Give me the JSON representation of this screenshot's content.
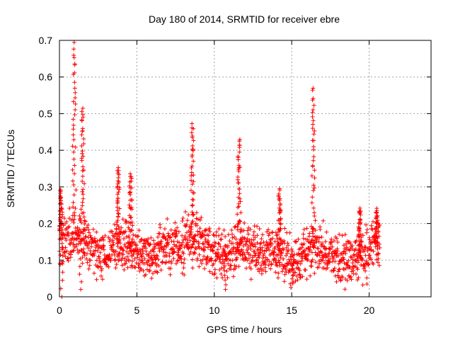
{
  "chart_data": {
    "type": "scatter",
    "title": "Day 180 of 2014, SRMTID for receiver ebre",
    "xlabel": "GPS time / hours",
    "ylabel": "SRMTID / TECUs",
    "xlim": [
      0,
      24
    ],
    "ylim": [
      0,
      0.7
    ],
    "xticks": [
      "0",
      "5",
      "10",
      "15",
      "20"
    ],
    "yticks": [
      "0",
      "0.1",
      "0.2",
      "0.3",
      "0.4",
      "0.5",
      "0.6",
      "0.7"
    ],
    "grid": true,
    "marker": "+",
    "color": "#ff0000",
    "x_range_of_data": [
      0,
      20.7
    ],
    "baseline": [
      [
        0.0,
        0.16
      ],
      [
        0.5,
        0.15
      ],
      [
        1.0,
        0.18
      ],
      [
        1.5,
        0.16
      ],
      [
        2.0,
        0.14
      ],
      [
        2.5,
        0.12
      ],
      [
        3.0,
        0.11
      ],
      [
        3.5,
        0.14
      ],
      [
        4.0,
        0.15
      ],
      [
        4.5,
        0.14
      ],
      [
        5.0,
        0.12
      ],
      [
        5.5,
        0.12
      ],
      [
        6.0,
        0.11
      ],
      [
        6.5,
        0.13
      ],
      [
        7.0,
        0.14
      ],
      [
        7.5,
        0.14
      ],
      [
        8.0,
        0.15
      ],
      [
        8.5,
        0.16
      ],
      [
        9.0,
        0.15
      ],
      [
        9.5,
        0.14
      ],
      [
        10.0,
        0.12
      ],
      [
        10.5,
        0.11
      ],
      [
        11.0,
        0.11
      ],
      [
        11.5,
        0.14
      ],
      [
        12.0,
        0.14
      ],
      [
        12.5,
        0.13
      ],
      [
        13.0,
        0.12
      ],
      [
        13.5,
        0.13
      ],
      [
        14.0,
        0.13
      ],
      [
        14.5,
        0.11
      ],
      [
        15.0,
        0.1
      ],
      [
        15.5,
        0.11
      ],
      [
        16.0,
        0.13
      ],
      [
        16.5,
        0.14
      ],
      [
        17.0,
        0.12
      ],
      [
        17.5,
        0.11
      ],
      [
        18.0,
        0.1
      ],
      [
        18.5,
        0.1
      ],
      [
        19.0,
        0.11
      ],
      [
        19.5,
        0.11
      ],
      [
        20.0,
        0.13
      ],
      [
        20.7,
        0.14
      ]
    ],
    "peaks": [
      {
        "x": 0.1,
        "y": 0.29
      },
      {
        "x": 0.95,
        "y": 0.69
      },
      {
        "x": 1.5,
        "y": 0.52
      },
      {
        "x": 3.8,
        "y": 0.35
      },
      {
        "x": 4.6,
        "y": 0.34
      },
      {
        "x": 8.6,
        "y": 0.47
      },
      {
        "x": 11.6,
        "y": 0.43
      },
      {
        "x": 14.2,
        "y": 0.29
      },
      {
        "x": 16.4,
        "y": 0.57
      },
      {
        "x": 19.4,
        "y": 0.24
      },
      {
        "x": 20.5,
        "y": 0.24
      }
    ],
    "dips": [
      {
        "x": 0.15,
        "y": 0.0
      },
      {
        "x": 1.35,
        "y": 0.02
      },
      {
        "x": 10.7,
        "y": 0.02
      },
      {
        "x": 15.1,
        "y": 0.04
      }
    ]
  }
}
